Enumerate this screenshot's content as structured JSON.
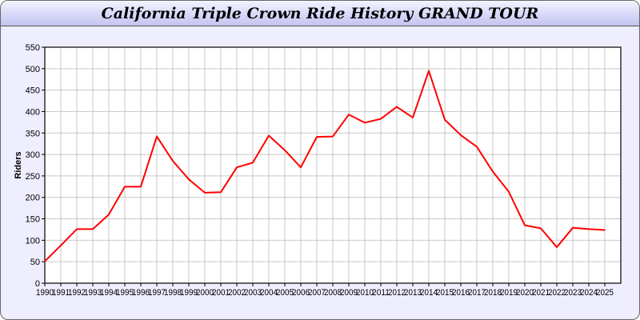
{
  "chart_data": {
    "type": "line",
    "title": "California Triple Crown Ride History GRAND TOUR",
    "xlabel": "",
    "ylabel": "Riders",
    "ylim": [
      0,
      550
    ],
    "yticks": [
      0,
      50,
      100,
      150,
      200,
      250,
      300,
      350,
      400,
      450,
      500,
      550
    ],
    "grid": true,
    "line_color": "#ff0000",
    "x": [
      1990,
      1991,
      1992,
      1993,
      1994,
      1995,
      1996,
      1997,
      1998,
      1999,
      2000,
      2001,
      2002,
      2003,
      2004,
      2005,
      2006,
      2007,
      2008,
      2009,
      2010,
      2011,
      2012,
      2013,
      2014,
      2015,
      2016,
      2017,
      2018,
      2019,
      2020,
      2021,
      2022,
      2023,
      2024,
      2025
    ],
    "values": [
      51,
      88,
      126,
      126,
      160,
      225,
      225,
      342,
      285,
      242,
      211,
      212,
      270,
      281,
      344,
      310,
      270,
      341,
      342,
      393,
      374,
      383,
      411,
      386,
      495,
      381,
      345,
      318,
      260,
      213,
      135,
      128,
      84,
      129,
      126,
      124
    ]
  }
}
